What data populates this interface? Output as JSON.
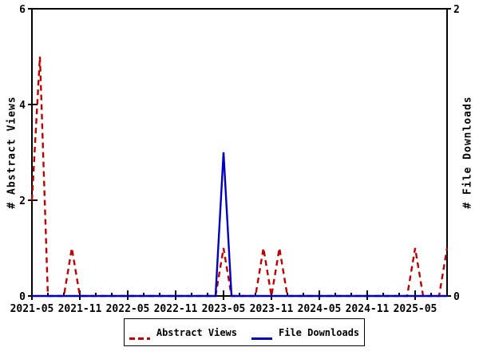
{
  "chart_data": {
    "type": "line",
    "title": "",
    "background": "#ffffff",
    "grid": false,
    "x": [
      "2021-05",
      "2021-06",
      "2021-07",
      "2021-08",
      "2021-09",
      "2021-10",
      "2021-11",
      "2021-12",
      "2022-01",
      "2022-02",
      "2022-03",
      "2022-04",
      "2022-05",
      "2022-06",
      "2022-07",
      "2022-08",
      "2022-09",
      "2022-10",
      "2022-11",
      "2022-12",
      "2023-01",
      "2023-02",
      "2023-03",
      "2023-04",
      "2023-05",
      "2023-06",
      "2023-07",
      "2023-08",
      "2023-09",
      "2023-10",
      "2023-11",
      "2023-12",
      "2024-01",
      "2024-02",
      "2024-03",
      "2024-04",
      "2024-05",
      "2024-06",
      "2024-07",
      "2024-08",
      "2024-09",
      "2024-10",
      "2024-11",
      "2024-12",
      "2025-01",
      "2025-02",
      "2025-03",
      "2025-04",
      "2025-05",
      "2025-06",
      "2025-07",
      "2025-08",
      "2025-09"
    ],
    "series": [
      {
        "name": "Abstract Views",
        "axis": "left",
        "color": "#c00000",
        "style": "dashed",
        "values": [
          2,
          5,
          0,
          0,
          0,
          1,
          0,
          0,
          0,
          0,
          0,
          0,
          0,
          0,
          0,
          0,
          0,
          0,
          0,
          0,
          0,
          0,
          0,
          0,
          1,
          0,
          0,
          0,
          0,
          1,
          0,
          1,
          0,
          0,
          0,
          0,
          0,
          0,
          0,
          0,
          0,
          0,
          0,
          0,
          0,
          0,
          0,
          0,
          1,
          0,
          0,
          0,
          1
        ]
      },
      {
        "name": "File Downloads",
        "axis": "right",
        "color": "#0000c0",
        "style": "solid",
        "values": [
          0,
          0,
          0,
          0,
          0,
          0,
          0,
          0,
          0,
          0,
          0,
          0,
          0,
          0,
          0,
          0,
          0,
          0,
          0,
          0,
          0,
          0,
          0,
          0,
          1,
          0,
          0,
          0,
          0,
          0,
          0,
          0,
          0,
          0,
          0,
          0,
          0,
          0,
          0,
          0,
          0,
          0,
          0,
          0,
          0,
          0,
          0,
          0,
          0,
          0,
          0,
          0,
          0
        ]
      }
    ],
    "left_axis": {
      "label": "# Abstract Views",
      "range": [
        0,
        6
      ],
      "ticks": [
        0,
        2,
        4,
        6
      ]
    },
    "right_axis": {
      "label": "# File Downloads",
      "range": [
        0,
        2
      ],
      "ticks": [
        0,
        2
      ]
    },
    "x_axis": {
      "tick_labels": [
        "2021-05",
        "2021-11",
        "2022-05",
        "2022-11",
        "2023-05",
        "2023-11",
        "2024-05",
        "2024-11",
        "2025-05"
      ],
      "major_every_months": 6,
      "minor_every_months": 2
    },
    "legend": {
      "position": "bottom-center",
      "entries": [
        "Abstract Views",
        "File Downloads"
      ]
    },
    "axis_color": "#000000",
    "text_color": "#000000"
  }
}
